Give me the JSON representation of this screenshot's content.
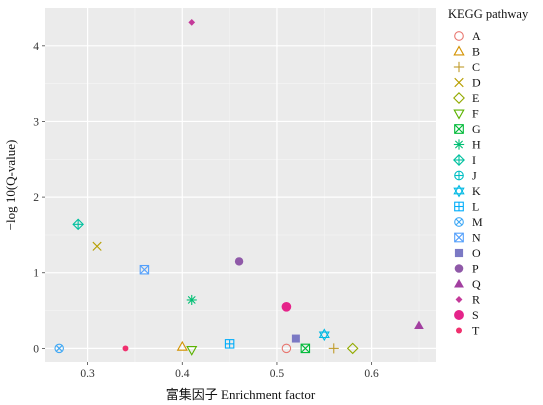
{
  "chart_data": {
    "type": "scatter",
    "xlabel": "富集因子 Enrichment factor",
    "ylabel": "−log 10(Q-value)",
    "xlim": [
      0.255,
      0.668
    ],
    "ylim": [
      -0.18,
      4.5
    ],
    "x_ticks": [
      0.3,
      0.4,
      0.5,
      0.6
    ],
    "x_tick_labels": [
      "0.3",
      "0.4",
      "0.5",
      "0.6"
    ],
    "y_ticks": [
      0,
      1,
      2,
      3,
      4
    ],
    "y_tick_labels": [
      "0",
      "1",
      "2",
      "3",
      "4"
    ],
    "grid": true,
    "legend_title": "KEGG pathway",
    "legend_position": "right",
    "series": [
      {
        "name": "A",
        "marker": "circle-open",
        "color": "#e8766f",
        "points": [
          {
            "x": 0.51,
            "y": 0.0
          }
        ]
      },
      {
        "name": "B",
        "marker": "triangle-open",
        "color": "#d39200",
        "points": [
          {
            "x": 0.4,
            "y": 0.02
          }
        ]
      },
      {
        "name": "C",
        "marker": "plus",
        "color": "#c09b2a",
        "points": [
          {
            "x": 0.56,
            "y": 0.0
          }
        ]
      },
      {
        "name": "D",
        "marker": "cross",
        "color": "#b79f00",
        "points": [
          {
            "x": 0.31,
            "y": 1.35
          }
        ]
      },
      {
        "name": "E",
        "marker": "diamond-open",
        "color": "#93aa00",
        "points": [
          {
            "x": 0.58,
            "y": 0.0
          }
        ]
      },
      {
        "name": "F",
        "marker": "triangle-down-open",
        "color": "#5bb300",
        "points": [
          {
            "x": 0.41,
            "y": -0.02
          }
        ]
      },
      {
        "name": "G",
        "marker": "square-cross",
        "color": "#00ba38",
        "points": [
          {
            "x": 0.53,
            "y": 0.0
          }
        ]
      },
      {
        "name": "H",
        "marker": "asterisk",
        "color": "#00bf74",
        "points": [
          {
            "x": 0.41,
            "y": 0.64
          }
        ]
      },
      {
        "name": "I",
        "marker": "diamond-plus",
        "color": "#00c19f",
        "points": [
          {
            "x": 0.29,
            "y": 1.64
          }
        ]
      },
      {
        "name": "J",
        "marker": "circle-plus",
        "color": "#00bfc4",
        "points": []
      },
      {
        "name": "K",
        "marker": "star-of-david",
        "color": "#00b9e3",
        "points": [
          {
            "x": 0.55,
            "y": 0.18
          }
        ]
      },
      {
        "name": "L",
        "marker": "square-plus",
        "color": "#00adfa",
        "points": [
          {
            "x": 0.45,
            "y": 0.06
          }
        ]
      },
      {
        "name": "M",
        "marker": "circle-cross",
        "color": "#3fa8f5",
        "points": [
          {
            "x": 0.27,
            "y": 0.0
          }
        ]
      },
      {
        "name": "N",
        "marker": "square-x",
        "color": "#54a0fb",
        "points": [
          {
            "x": 0.36,
            "y": 1.04
          }
        ]
      },
      {
        "name": "O",
        "marker": "square-filled",
        "color": "#7b79c4",
        "points": [
          {
            "x": 0.52,
            "y": 0.13
          }
        ]
      },
      {
        "name": "P",
        "marker": "circle-filled",
        "color": "#8f59a8",
        "points": [
          {
            "x": 0.46,
            "y": 1.15
          }
        ]
      },
      {
        "name": "Q",
        "marker": "triangle-filled",
        "color": "#a23fa0",
        "points": [
          {
            "x": 0.65,
            "y": 0.3
          }
        ]
      },
      {
        "name": "R",
        "marker": "diamond-filled",
        "color": "#c43a9a",
        "points": [
          {
            "x": 0.41,
            "y": 4.31
          }
        ]
      },
      {
        "name": "S",
        "marker": "circle-filled-large",
        "color": "#e5248a",
        "points": [
          {
            "x": 0.51,
            "y": 0.55
          }
        ]
      },
      {
        "name": "T",
        "marker": "circle-filled-small",
        "color": "#f0306e",
        "points": [
          {
            "x": 0.34,
            "y": 0.0
          }
        ]
      }
    ]
  }
}
